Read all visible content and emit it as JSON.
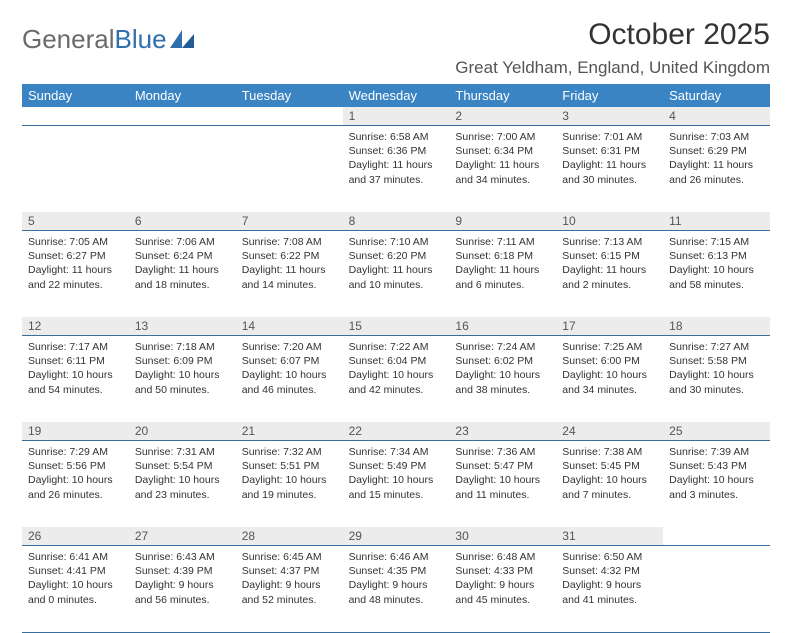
{
  "logo": {
    "text_gray": "General",
    "text_blue": "Blue"
  },
  "title": "October 2025",
  "location": "Great Yeldham, England, United Kingdom",
  "colors": {
    "header_bg": "#3a84c4",
    "header_text": "#ffffff",
    "daynum_bg": "#ececec",
    "rule": "#3a6e9a",
    "body_text": "#333333",
    "logo_gray": "#6b6b6b",
    "logo_blue": "#2f6fae"
  },
  "day_names": [
    "Sunday",
    "Monday",
    "Tuesday",
    "Wednesday",
    "Thursday",
    "Friday",
    "Saturday"
  ],
  "weeks": [
    [
      null,
      null,
      null,
      {
        "n": "1",
        "sunrise": "6:58 AM",
        "sunset": "6:36 PM",
        "daylight": "11 hours and 37 minutes."
      },
      {
        "n": "2",
        "sunrise": "7:00 AM",
        "sunset": "6:34 PM",
        "daylight": "11 hours and 34 minutes."
      },
      {
        "n": "3",
        "sunrise": "7:01 AM",
        "sunset": "6:31 PM",
        "daylight": "11 hours and 30 minutes."
      },
      {
        "n": "4",
        "sunrise": "7:03 AM",
        "sunset": "6:29 PM",
        "daylight": "11 hours and 26 minutes."
      }
    ],
    [
      {
        "n": "5",
        "sunrise": "7:05 AM",
        "sunset": "6:27 PM",
        "daylight": "11 hours and 22 minutes."
      },
      {
        "n": "6",
        "sunrise": "7:06 AM",
        "sunset": "6:24 PM",
        "daylight": "11 hours and 18 minutes."
      },
      {
        "n": "7",
        "sunrise": "7:08 AM",
        "sunset": "6:22 PM",
        "daylight": "11 hours and 14 minutes."
      },
      {
        "n": "8",
        "sunrise": "7:10 AM",
        "sunset": "6:20 PM",
        "daylight": "11 hours and 10 minutes."
      },
      {
        "n": "9",
        "sunrise": "7:11 AM",
        "sunset": "6:18 PM",
        "daylight": "11 hours and 6 minutes."
      },
      {
        "n": "10",
        "sunrise": "7:13 AM",
        "sunset": "6:15 PM",
        "daylight": "11 hours and 2 minutes."
      },
      {
        "n": "11",
        "sunrise": "7:15 AM",
        "sunset": "6:13 PM",
        "daylight": "10 hours and 58 minutes."
      }
    ],
    [
      {
        "n": "12",
        "sunrise": "7:17 AM",
        "sunset": "6:11 PM",
        "daylight": "10 hours and 54 minutes."
      },
      {
        "n": "13",
        "sunrise": "7:18 AM",
        "sunset": "6:09 PM",
        "daylight": "10 hours and 50 minutes."
      },
      {
        "n": "14",
        "sunrise": "7:20 AM",
        "sunset": "6:07 PM",
        "daylight": "10 hours and 46 minutes."
      },
      {
        "n": "15",
        "sunrise": "7:22 AM",
        "sunset": "6:04 PM",
        "daylight": "10 hours and 42 minutes."
      },
      {
        "n": "16",
        "sunrise": "7:24 AM",
        "sunset": "6:02 PM",
        "daylight": "10 hours and 38 minutes."
      },
      {
        "n": "17",
        "sunrise": "7:25 AM",
        "sunset": "6:00 PM",
        "daylight": "10 hours and 34 minutes."
      },
      {
        "n": "18",
        "sunrise": "7:27 AM",
        "sunset": "5:58 PM",
        "daylight": "10 hours and 30 minutes."
      }
    ],
    [
      {
        "n": "19",
        "sunrise": "7:29 AM",
        "sunset": "5:56 PM",
        "daylight": "10 hours and 26 minutes."
      },
      {
        "n": "20",
        "sunrise": "7:31 AM",
        "sunset": "5:54 PM",
        "daylight": "10 hours and 23 minutes."
      },
      {
        "n": "21",
        "sunrise": "7:32 AM",
        "sunset": "5:51 PM",
        "daylight": "10 hours and 19 minutes."
      },
      {
        "n": "22",
        "sunrise": "7:34 AM",
        "sunset": "5:49 PM",
        "daylight": "10 hours and 15 minutes."
      },
      {
        "n": "23",
        "sunrise": "7:36 AM",
        "sunset": "5:47 PM",
        "daylight": "10 hours and 11 minutes."
      },
      {
        "n": "24",
        "sunrise": "7:38 AM",
        "sunset": "5:45 PM",
        "daylight": "10 hours and 7 minutes."
      },
      {
        "n": "25",
        "sunrise": "7:39 AM",
        "sunset": "5:43 PM",
        "daylight": "10 hours and 3 minutes."
      }
    ],
    [
      {
        "n": "26",
        "sunrise": "6:41 AM",
        "sunset": "4:41 PM",
        "daylight": "10 hours and 0 minutes."
      },
      {
        "n": "27",
        "sunrise": "6:43 AM",
        "sunset": "4:39 PM",
        "daylight": "9 hours and 56 minutes."
      },
      {
        "n": "28",
        "sunrise": "6:45 AM",
        "sunset": "4:37 PM",
        "daylight": "9 hours and 52 minutes."
      },
      {
        "n": "29",
        "sunrise": "6:46 AM",
        "sunset": "4:35 PM",
        "daylight": "9 hours and 48 minutes."
      },
      {
        "n": "30",
        "sunrise": "6:48 AM",
        "sunset": "4:33 PM",
        "daylight": "9 hours and 45 minutes."
      },
      {
        "n": "31",
        "sunrise": "6:50 AM",
        "sunset": "4:32 PM",
        "daylight": "9 hours and 41 minutes."
      },
      null
    ]
  ],
  "labels": {
    "sunrise": "Sunrise:",
    "sunset": "Sunset:",
    "daylight": "Daylight:"
  }
}
